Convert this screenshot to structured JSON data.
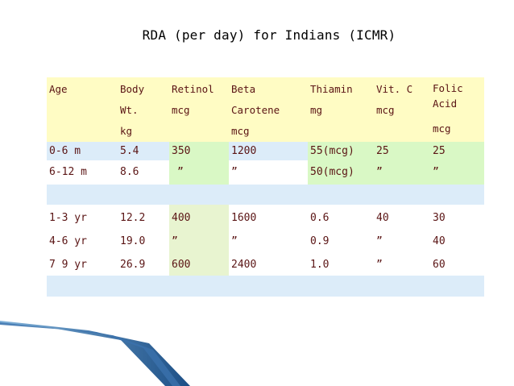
{
  "title": "RDA (per day) for Indians (ICMR)",
  "columns": [
    "Age",
    "Body Wt. kg",
    "Retinol mcg",
    "Beta Carotene mcg",
    "Thiamin mg",
    "Vit. C mcg",
    "Folic Acid mcg"
  ],
  "header": {
    "age": "Age",
    "body": [
      "Body",
      "Wt.",
      "kg"
    ],
    "retinol": [
      "Retinol",
      "mcg"
    ],
    "beta": [
      "Beta",
      "Carotene",
      "mcg"
    ],
    "thiamin": [
      "Thiamin",
      "mg"
    ],
    "vitc": [
      "Vit. C",
      "mcg"
    ],
    "folic": [
      "Folic",
      "Acid",
      "mcg"
    ]
  },
  "rows": [
    [
      "0-6 m",
      "5.4",
      "350",
      "1200",
      "55(mcg)",
      "25",
      "25"
    ],
    [
      "6-12 m",
      "8.6",
      "”",
      "”",
      "50(mcg)",
      "”",
      "”"
    ],
    [
      "1-3 yr",
      "12.2",
      "400",
      "1600",
      "0.6",
      "40",
      "30"
    ],
    [
      "4-6 yr",
      "19.0",
      "”",
      "”",
      "0.9",
      "”",
      "40"
    ],
    [
      "7 9 yr",
      "26.9",
      "600",
      "2400",
      "1.0",
      "”",
      "60"
    ]
  ],
  "colors": {
    "header_bg": "#fffcc4",
    "band_bg": "#dcecf9",
    "green_bg": "#d9f8c5",
    "text": "#5a1414"
  }
}
